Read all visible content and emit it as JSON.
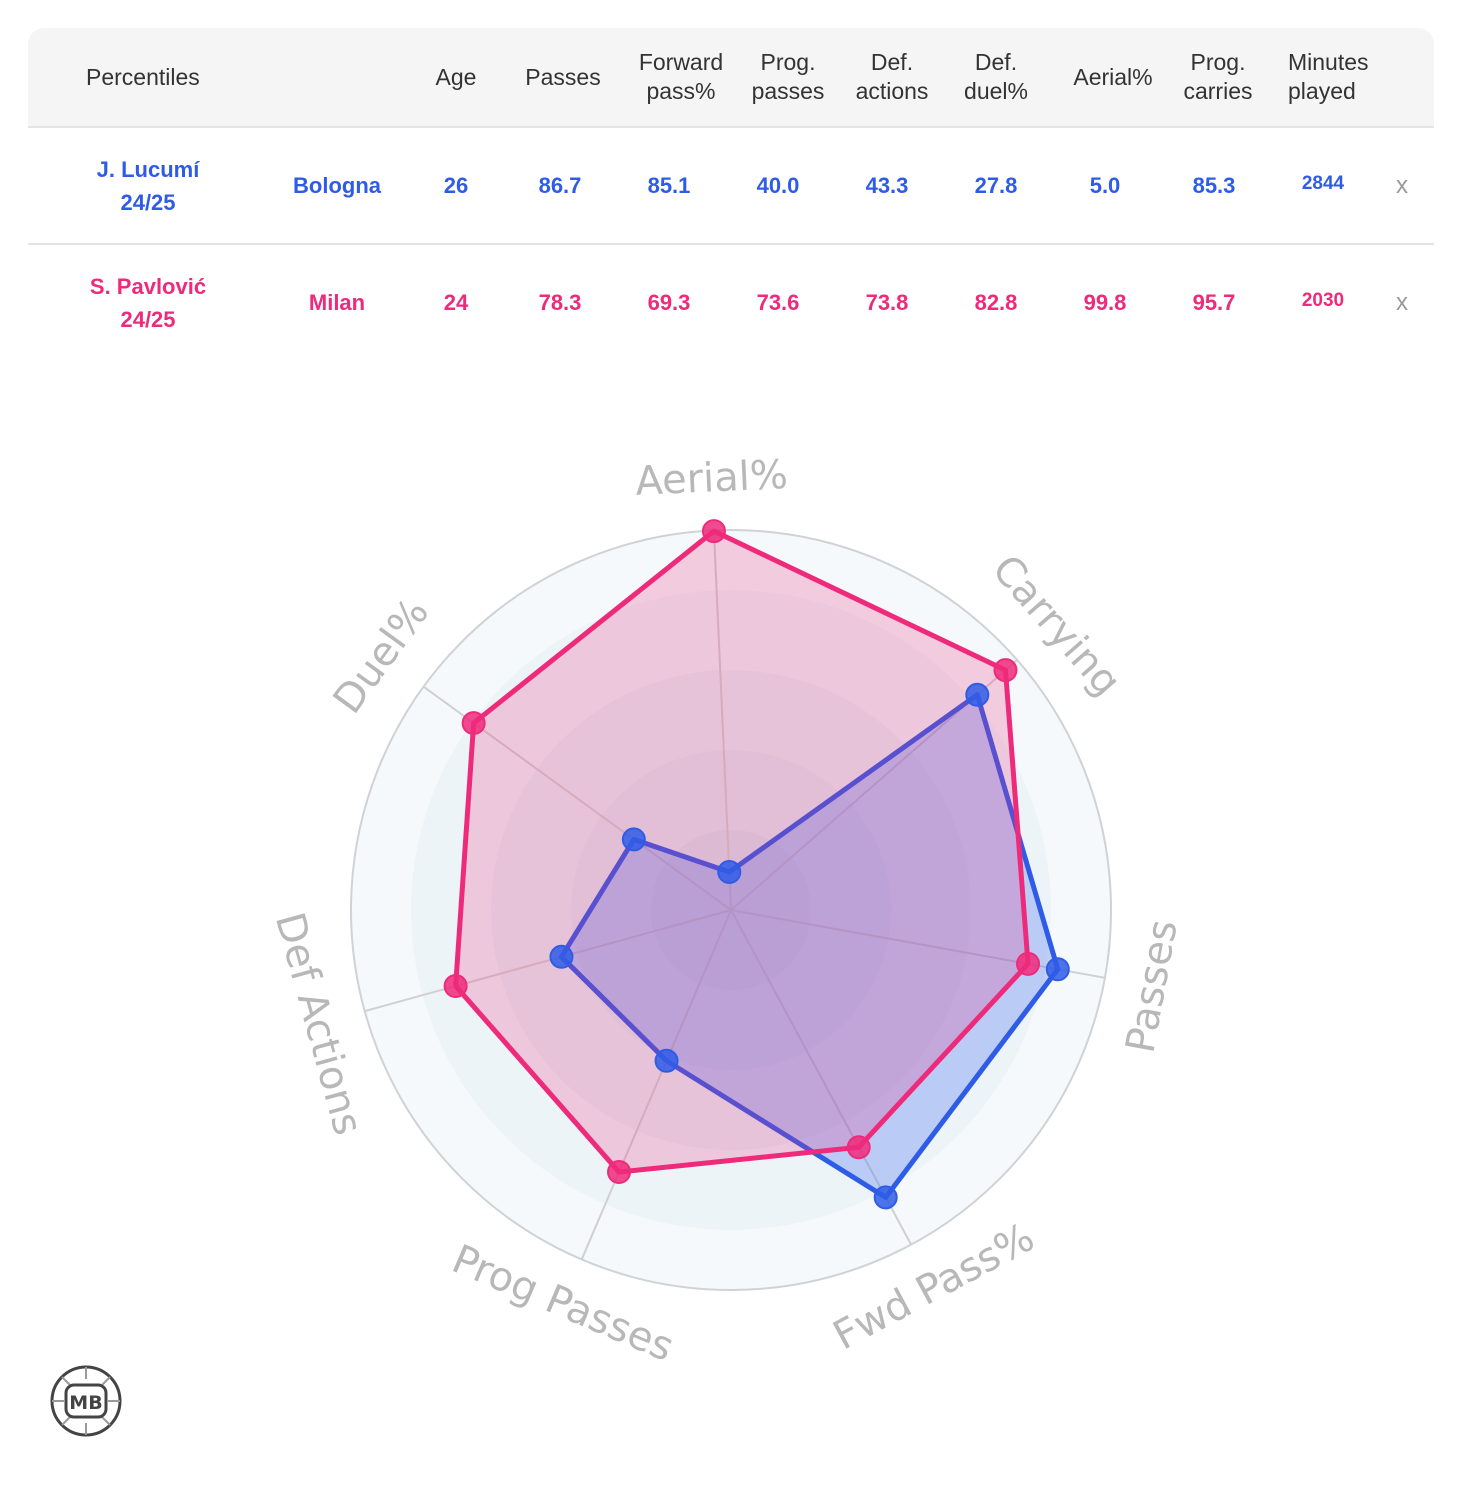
{
  "table": {
    "headers": [
      {
        "key": "percentiles",
        "label": "Percentiles"
      },
      {
        "key": "team",
        "label": ""
      },
      {
        "key": "age",
        "label": "Age"
      },
      {
        "key": "passes",
        "label": "Passes"
      },
      {
        "key": "forward_pass",
        "label": "Forward pass%"
      },
      {
        "key": "prog_passes",
        "label": "Prog. passes"
      },
      {
        "key": "def_actions",
        "label": "Def. actions"
      },
      {
        "key": "def_duel",
        "label": "Def. duel%"
      },
      {
        "key": "aerial",
        "label": "Aerial%"
      },
      {
        "key": "prog_carries",
        "label": "Prog. carries"
      },
      {
        "key": "minutes",
        "label": "Minutes played"
      }
    ],
    "rows": [
      {
        "player": "J. Lucumí",
        "season": "24/25",
        "team": "Bologna",
        "age": "26",
        "passes": "86.7",
        "forward_pass": "85.1",
        "prog_passes": "40.0",
        "def_actions": "43.3",
        "def_duel": "27.8",
        "aerial": "5.0",
        "prog_carries": "85.3",
        "minutes": "2844",
        "remove": "x",
        "color": "#2f5ce6"
      },
      {
        "player": "S. Pavlović",
        "season": "24/25",
        "team": "Milan",
        "age": "24",
        "passes": "78.3",
        "forward_pass": "69.3",
        "prog_passes": "73.6",
        "def_actions": "73.8",
        "def_duel": "82.8",
        "aerial": "99.8",
        "prog_carries": "95.7",
        "minutes": "2030",
        "remove": "x",
        "color": "#ee2a7b"
      }
    ]
  },
  "chart_data": {
    "type": "radar",
    "axes": [
      "Aerial%",
      "Carrying",
      "Passes",
      "Fwd Pass%",
      "Prog Passes",
      "Def Actions",
      "Duel%"
    ],
    "range": [
      0,
      100
    ],
    "grid": true,
    "legend": "none",
    "series": [
      {
        "name": "J. Lucumí",
        "color": "#2f5ce6",
        "fill": "rgba(55,100,240,0.28)",
        "values": [
          5.0,
          85.3,
          86.7,
          85.1,
          40.0,
          43.3,
          27.8
        ]
      },
      {
        "name": "S. Pavlović",
        "color": "#ee2a7b",
        "fill": "rgba(238,42,123,0.22)",
        "values": [
          99.8,
          95.7,
          78.3,
          69.3,
          73.6,
          73.8,
          82.8
        ]
      }
    ]
  },
  "logo": {
    "text": "MB"
  }
}
